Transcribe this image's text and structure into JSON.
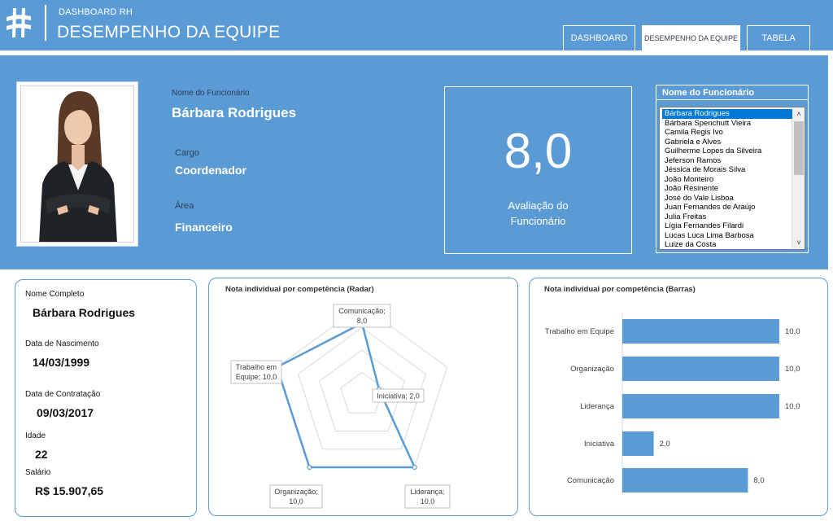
{
  "header": {
    "app_title": "DASHBOARD RH",
    "page_title": "DESEMPENHO DA EQUIPE",
    "tabs": [
      {
        "label": "DASHBOARD",
        "active": false
      },
      {
        "label": "DESEMPENHO DA EQUIPE",
        "active": true
      },
      {
        "label": "TABELA",
        "active": false
      }
    ]
  },
  "profile": {
    "name_label": "Nome do Funcionário",
    "name": "Bárbara Rodrigues",
    "role_label": "Cargo",
    "role": "Coordenador",
    "area_label": "Área",
    "area": "Financeiro",
    "score": "8,0",
    "score_label_line1": "Avaliação do",
    "score_label_line2": "Funcionário"
  },
  "employee_list": {
    "header": "Nome do Funcionário",
    "selected_index": 0,
    "items": [
      "Bárbara Rodrigues",
      "Bárbara Spenchutt Vieira",
      "Camila Regis Ivo",
      "Gabriela e Alves",
      "Guilherme Lopes da Silveira",
      "Jeferson Ramos",
      "Jéssica de Morais Silva",
      "João Monteiro",
      "João Resinente",
      "José do Vale Lisboa",
      "Juan Fernandes de Araújo",
      "Julia Freitas",
      "Lígia Fernandes Filardi",
      "Lucas Luca Lima Barbosa",
      "Luize da Costa"
    ]
  },
  "details": {
    "full_name_label": "Nome Completo",
    "full_name": "Bárbara Rodrigues",
    "birth_label": "Data de Nascimento",
    "birth": "14/03/1999",
    "hire_label": "Data de Contratação",
    "hire": "09/03/2017",
    "age_label": "Idade",
    "age": "22",
    "salary_label": "Salário",
    "salary": "R$ 15.907,65"
  },
  "colors": {
    "accent": "#5b9bd5",
    "selection": "#0078d7"
  },
  "chart_data": [
    {
      "type": "radar",
      "title": "Nota individual por competência (Radar)",
      "categories": [
        "Comunicação",
        "Iniciativa",
        "Liderança",
        "Organização",
        "Trabalho em Equipe"
      ],
      "values": [
        8,
        2,
        10,
        10,
        10
      ],
      "value_labels": [
        "8,0",
        "2,0",
        "10,0",
        "10,0",
        "10,0"
      ],
      "rmax": 10,
      "ring_count": 4
    },
    {
      "type": "bar",
      "orientation": "horizontal",
      "title": "Nota individual por competência (Barras)",
      "categories": [
        "Trabalho em Equipe",
        "Organização",
        "Liderança",
        "Iniciativa",
        "Comunicação"
      ],
      "values": [
        10,
        10,
        10,
        2,
        8
      ],
      "value_labels": [
        "10,0",
        "10,0",
        "10,0",
        "2,0",
        "8,0"
      ],
      "xlim": [
        0,
        10
      ]
    }
  ]
}
